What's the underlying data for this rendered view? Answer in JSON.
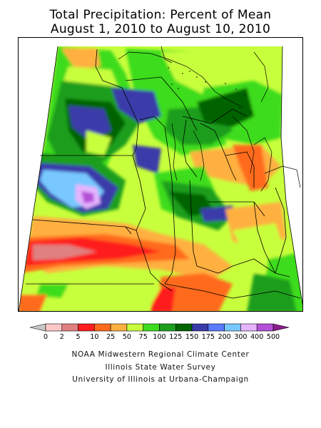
{
  "title": {
    "line1": "Total Precipitation: Percent of Mean",
    "line2": "August 1, 2010 to August 10, 2010"
  },
  "legend": {
    "breaks": [
      "0",
      "2",
      "5",
      "10",
      "25",
      "50",
      "75",
      "100",
      "125",
      "150",
      "175",
      "200",
      "300",
      "400",
      "500"
    ],
    "colors": [
      "#c8c8c8",
      "#ffc8c8",
      "#e08080",
      "#ff1e1e",
      "#ff6a1e",
      "#ffb040",
      "#c8ff3c",
      "#3cdc1e",
      "#1e9e1e",
      "#006400",
      "#3a3aaa",
      "#5a7aff",
      "#78c8ff",
      "#e6b4ff",
      "#b450d8",
      "#8c1e8c"
    ]
  },
  "credits": {
    "line1": "NOAA Midwestern Regional Climate Center",
    "line2": "Illinois State Water Survey",
    "line3": "University of Illinois at Urbana-Champaign"
  }
}
